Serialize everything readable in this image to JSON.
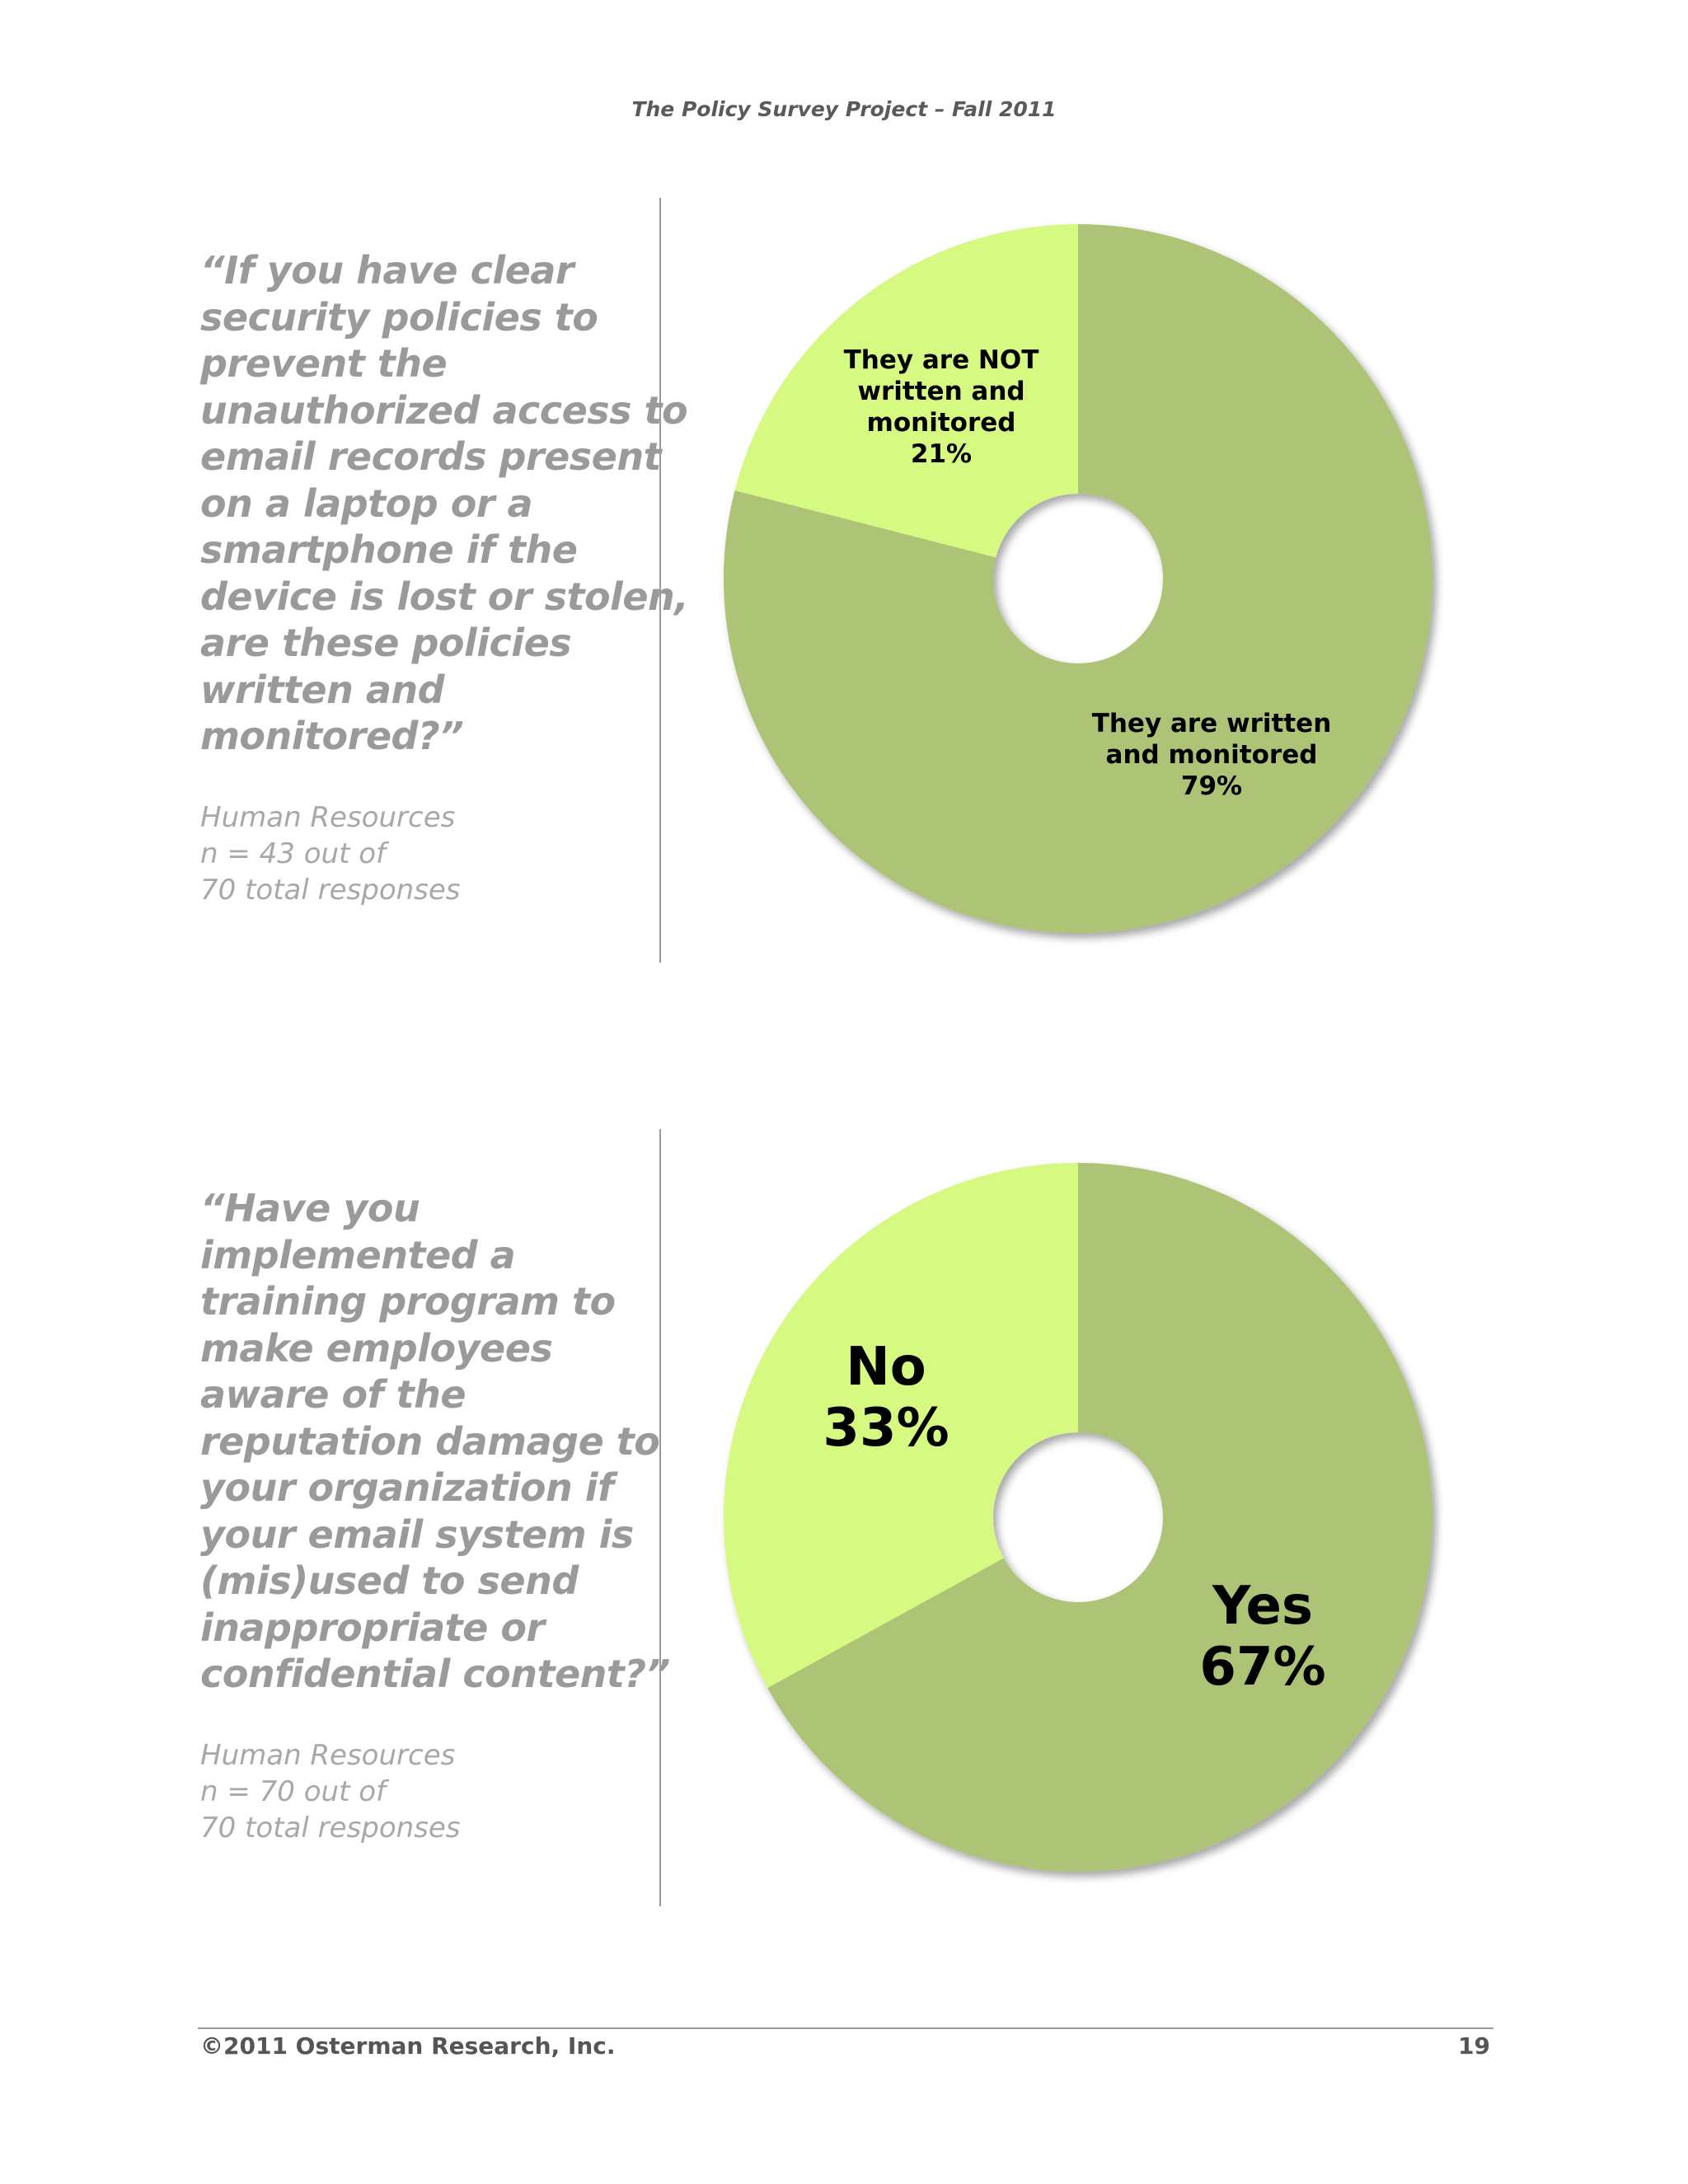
{
  "header": {
    "title": "The Policy Survey Project – Fall 2011"
  },
  "sections": [
    {
      "question_lines": [
        "“If you have clear",
        "security policies to",
        "prevent the",
        "unauthorized access to",
        "email records present",
        "on a laptop or a",
        "smartphone if the",
        "device is lost or stolen,",
        "are these policies",
        "written and",
        "monitored?”"
      ],
      "meta_lines": [
        "Human Resources",
        "n = 43 out of",
        "70 total responses"
      ]
    },
    {
      "question_lines": [
        "“Have you",
        "implemented a",
        "training program to",
        "make employees",
        "aware of the",
        "reputation damage to",
        "your organization if",
        "your email system is",
        "(mis)used to send",
        "inappropriate or",
        "confidential content?”"
      ],
      "meta_lines": [
        "Human Resources",
        "n = 70 out of",
        "70 total responses"
      ]
    }
  ],
  "chart_data": [
    {
      "type": "pie",
      "donut": true,
      "slices": [
        {
          "label_lines": [
            "They are written",
            "and monitored",
            "79%"
          ],
          "value": 79,
          "color": "#adc374"
        },
        {
          "label_lines": [
            "They are NOT",
            "written and",
            "monitored",
            "21%"
          ],
          "value": 21,
          "color": "#d6f981"
        }
      ]
    },
    {
      "type": "pie",
      "donut": true,
      "slices": [
        {
          "label_lines": [
            "Yes",
            "67%"
          ],
          "value": 67,
          "color": "#adc374"
        },
        {
          "label_lines": [
            "No",
            "33%"
          ],
          "value": 33,
          "color": "#d6f981"
        }
      ]
    }
  ],
  "footer": {
    "copyright": "©2011 Osterman Research, Inc.",
    "page_number": "19"
  }
}
